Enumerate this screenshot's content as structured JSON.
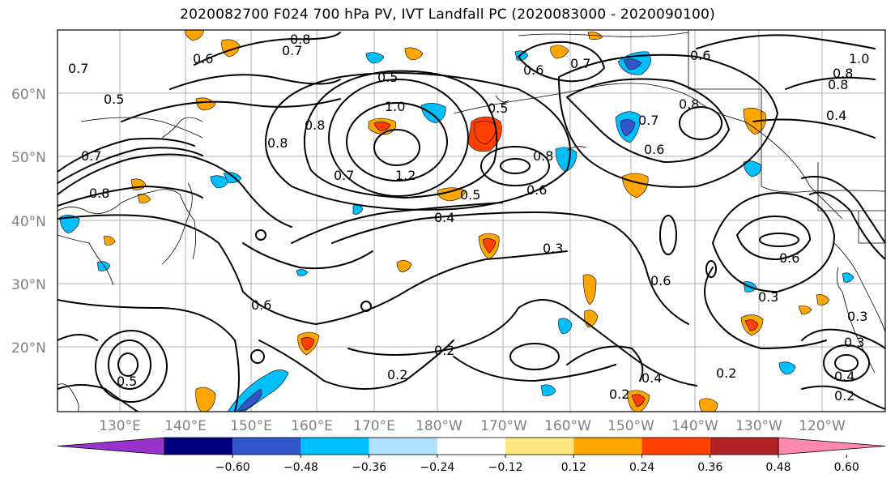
{
  "title": "2020082700 F024 700 hPa PV, IVT Landfall PC (2020083000 - 2020090100)",
  "lat_labels": [
    "60°N",
    "50°N",
    "40°N",
    "30°N",
    "20°N"
  ],
  "lon_labels": [
    "130°E",
    "140°E",
    "150°E",
    "160°E",
    "170°E",
    "180°W",
    "170°W",
    "160°W",
    "150°W",
    "140°W",
    "130°W",
    "120°W"
  ],
  "colorbar": {
    "ticks": [
      "−0.60",
      "−0.48",
      "−0.36",
      "−0.24",
      "−0.12",
      "0.12",
      "0.24",
      "0.36",
      "0.48",
      "0.60"
    ],
    "colors": [
      "#9933cc",
      "#000080",
      "#3355cc",
      "#00bfff",
      "#b0e0ff",
      "#ffffff",
      "#ffe680",
      "#ffa500",
      "#ff4000",
      "#b22222",
      "#ff88b0"
    ]
  },
  "contour_labels": [
    "0.8",
    "0.7",
    "0.6",
    "0.5",
    "1.0",
    "0.8",
    "0.5",
    "0.7",
    "0.6",
    "0.8",
    "0.7",
    "0.6",
    "1.0",
    "0.8",
    "0.4",
    "0.3",
    "0.8",
    "0.8",
    "0.7",
    "1.2",
    "0.8",
    "0.6",
    "0.4",
    "0.3",
    "0.6",
    "0.6",
    "0.3",
    "0.6",
    "0.2",
    "0.2",
    "0.4",
    "0.2",
    "0.2",
    "0.3",
    "0.2",
    "0.4",
    "0.5",
    "0.7",
    "0.5",
    "0.5",
    "0.7",
    "0.6",
    "0.8"
  ]
}
